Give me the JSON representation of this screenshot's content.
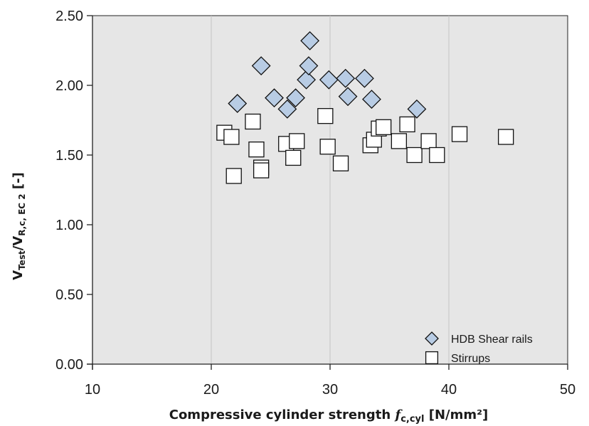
{
  "chart_data": {
    "type": "scatter",
    "xlabel_parts": {
      "main": "Compressive cylinder strength ",
      "f": "f",
      "sub": "c,cyl",
      "unit": "[N/mm²]"
    },
    "ylabel_parts": {
      "v1": "V",
      "sub1": "Test",
      "slash": "/",
      "v2": "V",
      "sub2": "R,c, EC 2",
      "unit": "[-]"
    },
    "xlim": [
      10,
      50
    ],
    "ylim": [
      0,
      2.5
    ],
    "x_ticks": [
      "10",
      "20",
      "30",
      "40",
      "50"
    ],
    "y_ticks": [
      "0.00",
      "0.50",
      "1.00",
      "1.50",
      "2.00",
      "2.50"
    ],
    "grid": "vertical",
    "plot_background": "#e6e6e6",
    "legend_position": "bottom-right",
    "series": [
      {
        "name": "HDB Shear rails",
        "marker": "diamond",
        "color": "#b8cce4",
        "x": [
          22.2,
          24.2,
          25.3,
          26.4,
          27.1,
          28.0,
          28.2,
          28.3,
          29.9,
          31.3,
          31.5,
          32.9,
          33.5,
          37.3
        ],
        "y": [
          1.87,
          2.14,
          1.91,
          1.83,
          1.91,
          2.04,
          2.14,
          2.32,
          2.04,
          2.05,
          1.92,
          2.05,
          1.9,
          1.83
        ]
      },
      {
        "name": "Stirrups",
        "marker": "square",
        "color": "#ffffff",
        "x": [
          21.1,
          21.7,
          21.9,
          23.5,
          23.8,
          24.2,
          24.2,
          26.3,
          26.9,
          27.2,
          29.6,
          29.8,
          30.9,
          33.4,
          33.7,
          34.1,
          34.5,
          35.8,
          36.5,
          37.1,
          38.3,
          39.0,
          40.9,
          44.8
        ],
        "y": [
          1.66,
          1.63,
          1.35,
          1.74,
          1.54,
          1.41,
          1.39,
          1.58,
          1.48,
          1.6,
          1.78,
          1.56,
          1.44,
          1.57,
          1.61,
          1.69,
          1.7,
          1.6,
          1.72,
          1.5,
          1.6,
          1.5,
          1.65,
          1.63
        ]
      }
    ]
  }
}
